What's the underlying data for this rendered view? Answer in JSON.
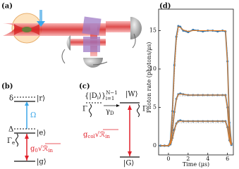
{
  "panels": {
    "a": {
      "label": "(a)"
    },
    "b": {
      "label": "(b)",
      "delta": "δ",
      "r": "|r⟩",
      "omega": "Ω",
      "Delta": "Δ",
      "e": "|e⟩",
      "gamma_e": [
        "Γ",
        "e"
      ],
      "coupling": [
        "g",
        "0",
        "√",
        "ℛ",
        "in"
      ],
      "g": "|g⟩"
    },
    "c": {
      "label": "(c)",
      "dark": [
        "{|D",
        "i",
        "⟩}",
        "N−1",
        "i=1"
      ],
      "W": "|W⟩",
      "gamma_left": "Γ",
      "gamma_D": [
        "γ",
        "D"
      ],
      "gamma_right": "Γ",
      "coupling": [
        "g",
        "col",
        "√",
        "ℛ",
        "in"
      ],
      "G": "|G⟩"
    },
    "d": {
      "label": "(d)"
    }
  },
  "chart_data": {
    "type": "line",
    "xlabel": "Time (μs)",
    "ylabel": "Photon rate (photons/μs)",
    "x": [
      -0.8,
      -0.4,
      0,
      0.2,
      0.4,
      0.6,
      0.8,
      1,
      1.2,
      1.5,
      2,
      2.5,
      3,
      3.5,
      4,
      4.5,
      5,
      5.5,
      5.8,
      6,
      6.2,
      6.4
    ],
    "xlim": [
      -1,
      6.6
    ],
    "ylim": [
      -1.2,
      17.8
    ],
    "xticks": [
      0,
      2,
      4,
      6
    ],
    "yticks": [
      0,
      5,
      10,
      15
    ],
    "grid": false,
    "series": [
      {
        "color": "#aaaaaa",
        "style": "dashed",
        "values": [
          0,
          0,
          0,
          0,
          3,
          9,
          13.5,
          15,
          15.2,
          15.1,
          15,
          15,
          15,
          15,
          15,
          15,
          15,
          15,
          15,
          12,
          3.5,
          0
        ]
      },
      {
        "color": "#aaaaaa",
        "style": "dashed",
        "values": [
          0,
          0,
          0,
          0,
          1.3,
          4,
          6,
          6.5,
          6.5,
          6.5,
          6.5,
          6.5,
          6.5,
          6.5,
          6.5,
          6.5,
          6.5,
          6.5,
          6.5,
          5.2,
          1.5,
          0
        ]
      },
      {
        "color": "#aaaaaa",
        "style": "dashed",
        "values": [
          0,
          0,
          0,
          0,
          0.6,
          1.8,
          2.8,
          3,
          3,
          3,
          3,
          3,
          3,
          3,
          3,
          3,
          3,
          3,
          3,
          2.4,
          0.7,
          0
        ]
      },
      {
        "color": "#3f78a8",
        "style": "markers",
        "values": [
          0,
          0,
          0,
          0.6,
          4.5,
          10.5,
          14.2,
          15.6,
          15.5,
          15,
          14.8,
          15.1,
          15,
          14.9,
          15,
          15,
          14.9,
          15,
          14.9,
          11,
          3,
          0.3
        ]
      },
      {
        "color": "#3f78a8",
        "style": "markers",
        "values": [
          0,
          0,
          0,
          0.3,
          2,
          4.4,
          6.1,
          6.7,
          6.8,
          6.7,
          6.6,
          6.6,
          6.6,
          6.6,
          6.6,
          6.6,
          6.6,
          6.6,
          6.6,
          5,
          1.4,
          0.2
        ]
      },
      {
        "color": "#3f78a8",
        "style": "markers",
        "values": [
          0,
          0,
          0,
          0.2,
          1,
          2.1,
          2.9,
          3.2,
          3.3,
          3.2,
          3.2,
          3.2,
          3.2,
          3.2,
          3.2,
          3.2,
          3.2,
          3.2,
          3.2,
          2.4,
          0.7,
          0.1
        ]
      },
      {
        "color": "#f07d1a",
        "style": "solid",
        "values": [
          0,
          0,
          0,
          0.5,
          4.3,
          10.2,
          14,
          15.5,
          15.4,
          15.1,
          14.9,
          15,
          15,
          15,
          15,
          15,
          15,
          15,
          15,
          10.8,
          2.8,
          0.2
        ]
      },
      {
        "color": "#f07d1a",
        "style": "solid",
        "values": [
          0,
          0,
          0,
          0.3,
          1.9,
          4.3,
          6,
          6.7,
          6.7,
          6.7,
          6.6,
          6.6,
          6.6,
          6.6,
          6.6,
          6.6,
          6.6,
          6.6,
          6.6,
          4.9,
          1.3,
          0.1
        ]
      },
      {
        "color": "#f07d1a",
        "style": "solid",
        "values": [
          0,
          0,
          0,
          0.2,
          0.9,
          2,
          2.9,
          3.2,
          3.2,
          3.2,
          3.2,
          3.2,
          3.2,
          3.2,
          3.2,
          3.2,
          3.2,
          3.2,
          3.2,
          2.3,
          0.6,
          0.1
        ]
      }
    ]
  }
}
